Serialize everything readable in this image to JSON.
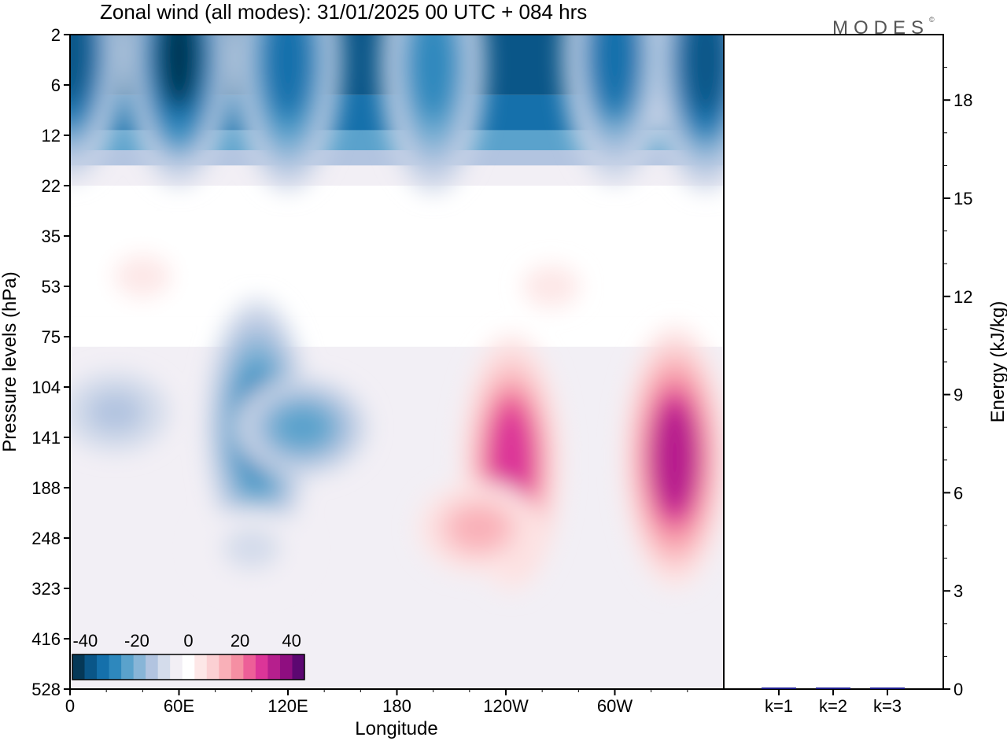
{
  "logo": "MODES",
  "logo_mark": "©",
  "chart_data": [
    {
      "type": "heatmap",
      "title": "Zonal wind (all modes):  31/01/2025  00 UTC  + 084 hrs",
      "xlabel": "Longitude",
      "ylabel": "Pressure levels (hPa)",
      "x_ticks": [
        "0",
        "60E",
        "120E",
        "180",
        "120W",
        "60W"
      ],
      "x_tick_degrees": [
        0,
        60,
        120,
        180,
        240,
        300
      ],
      "xlim": [
        0,
        360
      ],
      "y_ticks": [
        "2",
        "6",
        "12",
        "22",
        "35",
        "53",
        "75",
        "104",
        "141",
        "188",
        "248",
        "323",
        "416",
        "528"
      ],
      "y_scale": "level index (top = 2 hPa, bottom = 528 hPa)",
      "colorbar": {
        "tick_labels": [
          "-40",
          "-20",
          "0",
          "20",
          "40"
        ],
        "range": [
          -45,
          45
        ],
        "step": 5,
        "colors": [
          "#053857",
          "#0a5688",
          "#1570ab",
          "#2e88bd",
          "#5aa2cc",
          "#88b5d7",
          "#b2c4e0",
          "#d4dceb",
          "#f2eff5",
          "#ffffff",
          "#fde7e7",
          "#fbd0d3",
          "#f9b0b8",
          "#f58fa3",
          "#ed5f98",
          "#dc3598",
          "#b61f8d",
          "#8f0e80",
          "#5c0771"
        ]
      },
      "fields": [
        {
          "lon": 0,
          "level": 0.3,
          "u": -40
        },
        {
          "lon": 60,
          "level": 0.4,
          "u": -42
        },
        {
          "lon": 120,
          "level": 0.5,
          "u": -35
        },
        {
          "lon": 200,
          "level": 0.6,
          "u": -28
        },
        {
          "lon": 300,
          "level": 0.4,
          "u": -32
        },
        {
          "lon": 350,
          "level": 0.5,
          "u": -40
        },
        {
          "lon": 40,
          "level": 4.8,
          "u": 9
        },
        {
          "lon": 265,
          "level": 5.0,
          "u": 8
        },
        {
          "lon": 25,
          "level": 7.5,
          "u": -14
        },
        {
          "lon": 103,
          "level": 7.8,
          "u": -30
        },
        {
          "lon": 128,
          "level": 7.8,
          "u": -22
        },
        {
          "lon": 100,
          "level": 10.2,
          "u": -10
        },
        {
          "lon": 243,
          "level": 8.5,
          "u": 32
        },
        {
          "lon": 333,
          "level": 8.4,
          "u": 36
        },
        {
          "lon": 225,
          "level": 9.8,
          "u": 16
        }
      ]
    },
    {
      "type": "bar",
      "ylabel": "Energy (kJ/kg)",
      "categories": [
        "k=1",
        "k=2",
        "k=3"
      ],
      "values": [
        0.03,
        0.02,
        0.01
      ],
      "ylim": [
        0,
        20
      ],
      "y_ticks": [
        "0",
        "3",
        "6",
        "9",
        "12",
        "15",
        "18"
      ],
      "bar_color": "#1a1a8c"
    }
  ]
}
